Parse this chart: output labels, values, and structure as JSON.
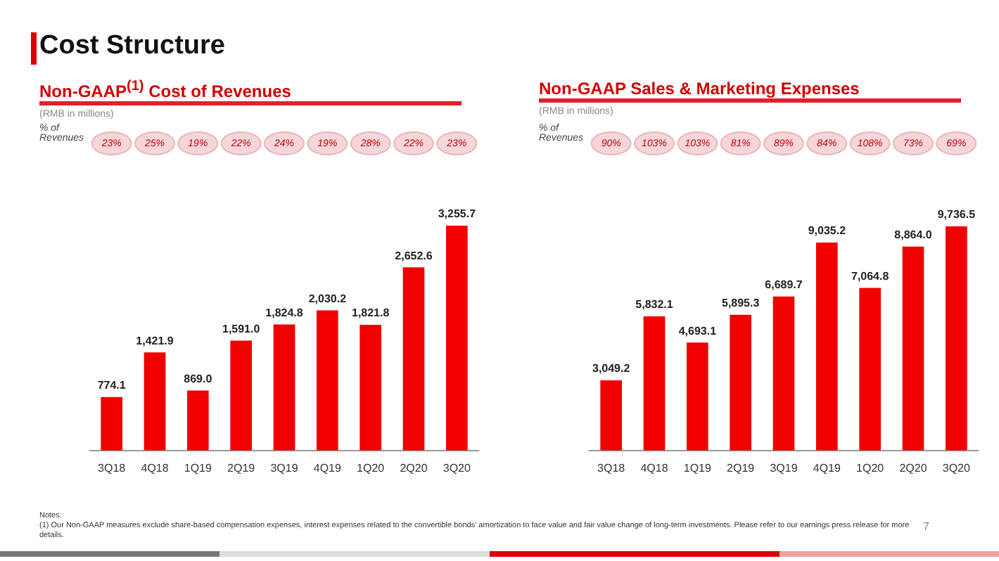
{
  "chart_data": [
    {
      "type": "bar",
      "title": "Non-GAAP$^{(1)}$ Cost of Revenues",
      "subtitle": "(RMB in millions)",
      "categories": [
        "3Q18",
        "4Q18",
        "1Q19",
        "2Q19",
        "3Q19",
        "4Q19",
        "1Q20",
        "2Q20",
        "3Q20"
      ],
      "values": [
        774.1,
        1421.9,
        869.0,
        1591.0,
        1824.8,
        2030.2,
        1821.8,
        2652.6,
        3255.7
      ],
      "value_labels": [
        "774.1",
        "1,421.9",
        "869.0",
        "1,591.0",
        "1,824.8",
        "2,030.2",
        "1,821.8",
        "2,652.6",
        "3,255.7"
      ],
      "color": "#f20000",
      "grid": false,
      "legend": false,
      "tick_labels": "x",
      "annotations": [
        "Cost Structure",
        "% of Revenues",
        "23%",
        "25%",
        "19%",
        "22%",
        "24%",
        "19%",
        "28%",
        "22%",
        "23%"
      ]
    },
    {
      "type": "bar",
      "title": "Non-GAAP Sales & Marketing Expenses",
      "subtitle": "(RMB in millions)",
      "categories": [
        "3Q18",
        "4Q18",
        "1Q19",
        "2Q19",
        "3Q19",
        "4Q19",
        "1Q20",
        "2Q20",
        "3Q20"
      ],
      "values": [
        3049.2,
        5832.1,
        4693.1,
        5895.3,
        6689.7,
        9035.2,
        7064.8,
        8864.0,
        9736.5
      ],
      "value_labels": [
        "3,049.2",
        "5,832.1",
        "4,693.1",
        "5,895.3",
        "6,689.7",
        "9,035.2",
        "7,064.8",
        "8,864.0",
        "9,736.5"
      ],
      "color": "#f20000",
      "grid": false,
      "legend": false,
      "tick_labels": "x",
      "annotations": [
        "% of Revenues",
        "90%",
        "103%",
        "103%",
        "81%",
        "89%",
        "84%",
        "108%",
        "73%",
        "69%",
        "Notes:",
        "(1)    Our Non-GAAP measures exclude share-based compensation expenses, interest expenses related to the convertible bonds' amortization to face value and fair value change of long-term investments. Please refer to our earnings press release for more details.",
        "7"
      ]
    }
  ]
}
